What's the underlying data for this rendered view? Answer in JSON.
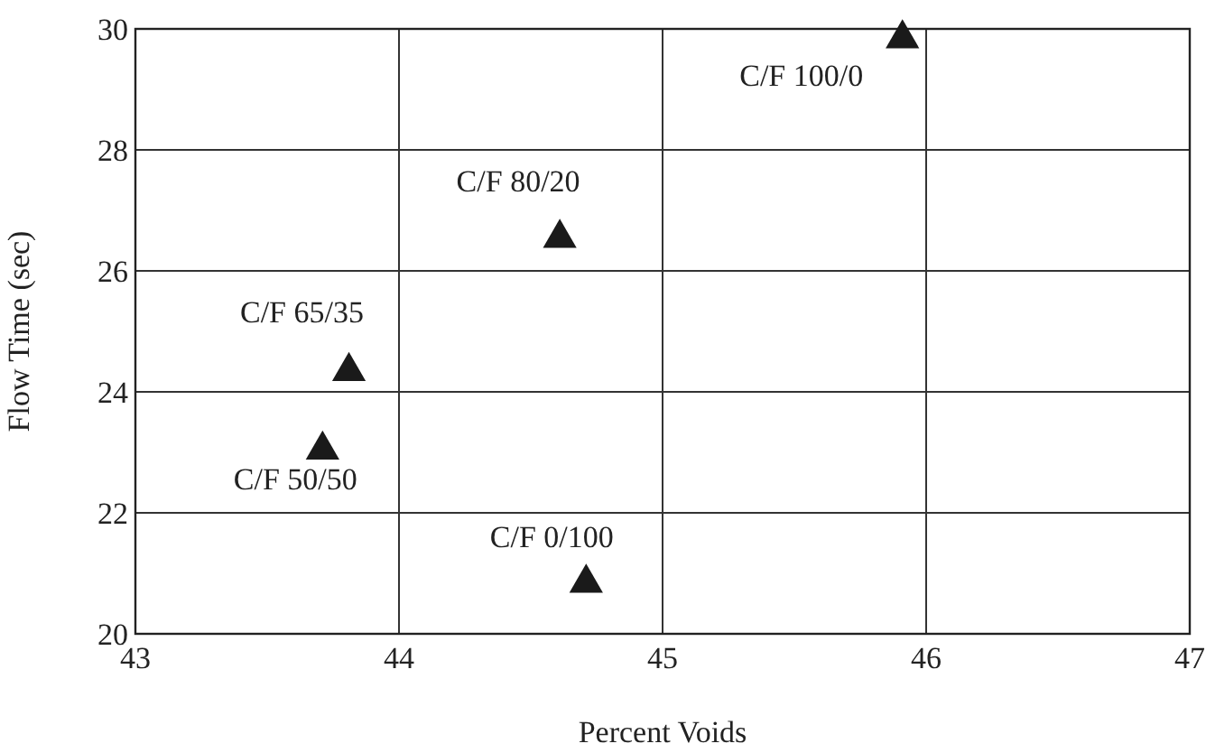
{
  "chart_data": {
    "type": "scatter",
    "xlabel": "Percent Voids",
    "ylabel": "Flow Time (sec)",
    "x": [
      45.91,
      44.61,
      43.81,
      43.71,
      44.71
    ],
    "series": [
      {
        "color": "#1a1a1a",
        "values": [
          29.9,
          26.6,
          24.4,
          23.1,
          20.9
        ]
      }
    ],
    "xlim": [
      43,
      47
    ],
    "xticks": [
      43,
      44,
      45,
      46,
      47
    ],
    "ylim": [
      20,
      30
    ],
    "yticks": [
      20,
      22,
      24,
      26,
      28,
      30
    ],
    "grid": true,
    "marker": "triangle",
    "annotations": [
      {
        "text": "C/F 100/0",
        "x": 45.91,
        "y": 29.9
      },
      {
        "text": "C/F 80/20",
        "x": 44.61,
        "y": 26.6
      },
      {
        "text": "C/F 65/35",
        "x": 43.81,
        "y": 24.4
      },
      {
        "text": "C/F 50/50",
        "x": 43.71,
        "y": 23.1
      },
      {
        "text": "C/F 0/100",
        "x": 44.71,
        "y": 20.9
      }
    ]
  }
}
